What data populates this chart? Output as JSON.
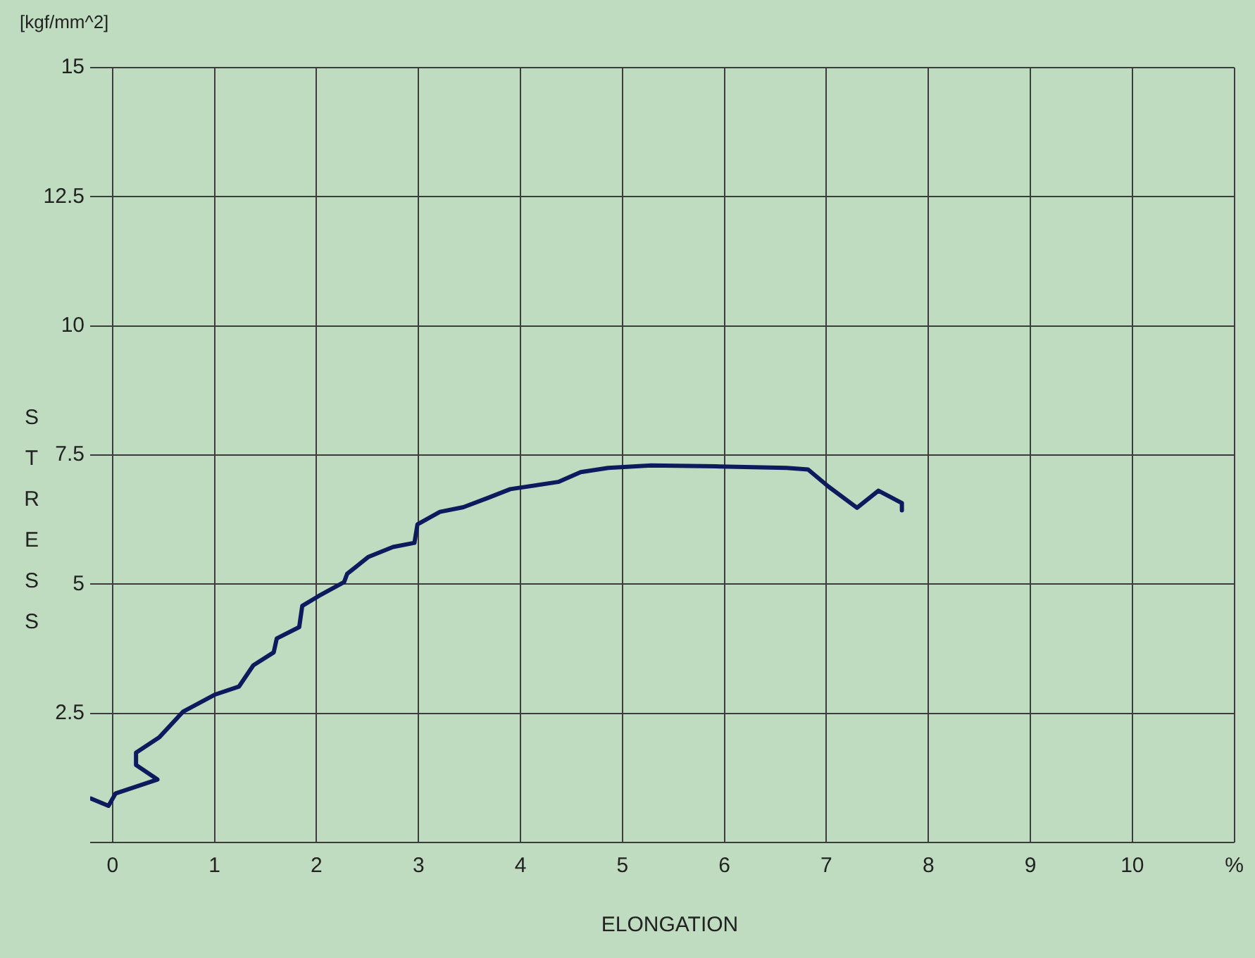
{
  "chart_data": {
    "type": "line",
    "xlabel": "ELONGATION",
    "ylabel": "STRESS",
    "annotations": [
      "[kgf/mm^2]"
    ],
    "x": [
      -0.21,
      -0.04,
      0.03,
      0.44,
      0.23,
      0.23,
      0.46,
      0.69,
      1.0,
      1.24,
      1.38,
      1.58,
      1.61,
      1.83,
      1.86,
      2.02,
      2.27,
      2.3,
      2.51,
      2.75,
      2.96,
      2.99,
      3.21,
      3.44,
      3.68,
      3.9,
      4.37,
      4.59,
      4.86,
      5.28,
      5.96,
      6.61,
      6.82,
      7.02,
      7.3,
      7.51,
      7.74,
      7.74
    ],
    "series": [
      {
        "color": "#0d1b5e",
        "values": [
          0.85,
          0.71,
          0.95,
          1.22,
          1.5,
          1.74,
          2.04,
          2.53,
          2.86,
          3.02,
          3.43,
          3.68,
          3.95,
          4.17,
          4.58,
          4.77,
          5.04,
          5.2,
          5.53,
          5.72,
          5.8,
          6.16,
          6.4,
          6.49,
          6.67,
          6.84,
          6.98,
          7.17,
          7.25,
          7.3,
          7.28,
          7.25,
          7.22,
          6.89,
          6.48,
          6.81,
          6.57,
          6.43
        ]
      }
    ],
    "xlim": [
      -0.22,
      11
    ],
    "xticks": [
      0,
      1,
      2,
      3,
      4,
      5,
      6,
      7,
      8,
      9,
      10,
      {
        "value": 11,
        "label": "%"
      }
    ],
    "ylim": [
      0,
      15
    ],
    "yticks": [
      {
        "value": 0,
        "label": null
      },
      2.5,
      5,
      7.5,
      10,
      12.5,
      15
    ],
    "grid": true,
    "line_style": "solid"
  }
}
